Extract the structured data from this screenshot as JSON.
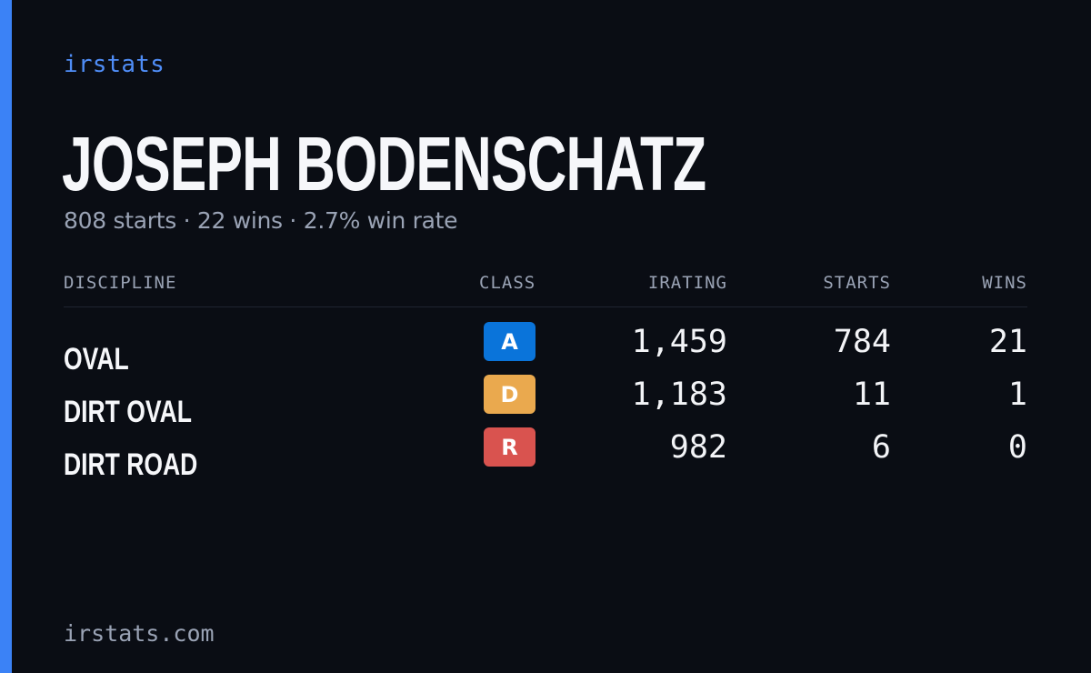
{
  "brand": "irstats",
  "driver": {
    "name": "JOSEPH BODENSCHATZ",
    "summary": "808 starts · 22 wins · 2.7% win rate"
  },
  "table": {
    "headers": {
      "discipline": "DISCIPLINE",
      "class": "CLASS",
      "irating": "IRATING",
      "starts": "STARTS",
      "wins": "WINS"
    },
    "rows": [
      {
        "discipline": "OVAL",
        "class": "A",
        "class_color": "#0a74da",
        "irating": "1,459",
        "starts": "784",
        "wins": "21"
      },
      {
        "discipline": "DIRT OVAL",
        "class": "D",
        "class_color": "#eaa94e",
        "irating": "1,183",
        "starts": "11",
        "wins": "1"
      },
      {
        "discipline": "DIRT ROAD",
        "class": "R",
        "class_color": "#d9534f",
        "irating": "982",
        "starts": "6",
        "wins": "0"
      }
    ]
  },
  "footer": "irstats.com",
  "colors": {
    "background": "#0a0d14",
    "accent": "#3b82f6",
    "muted_text": "#9aa3b5"
  }
}
